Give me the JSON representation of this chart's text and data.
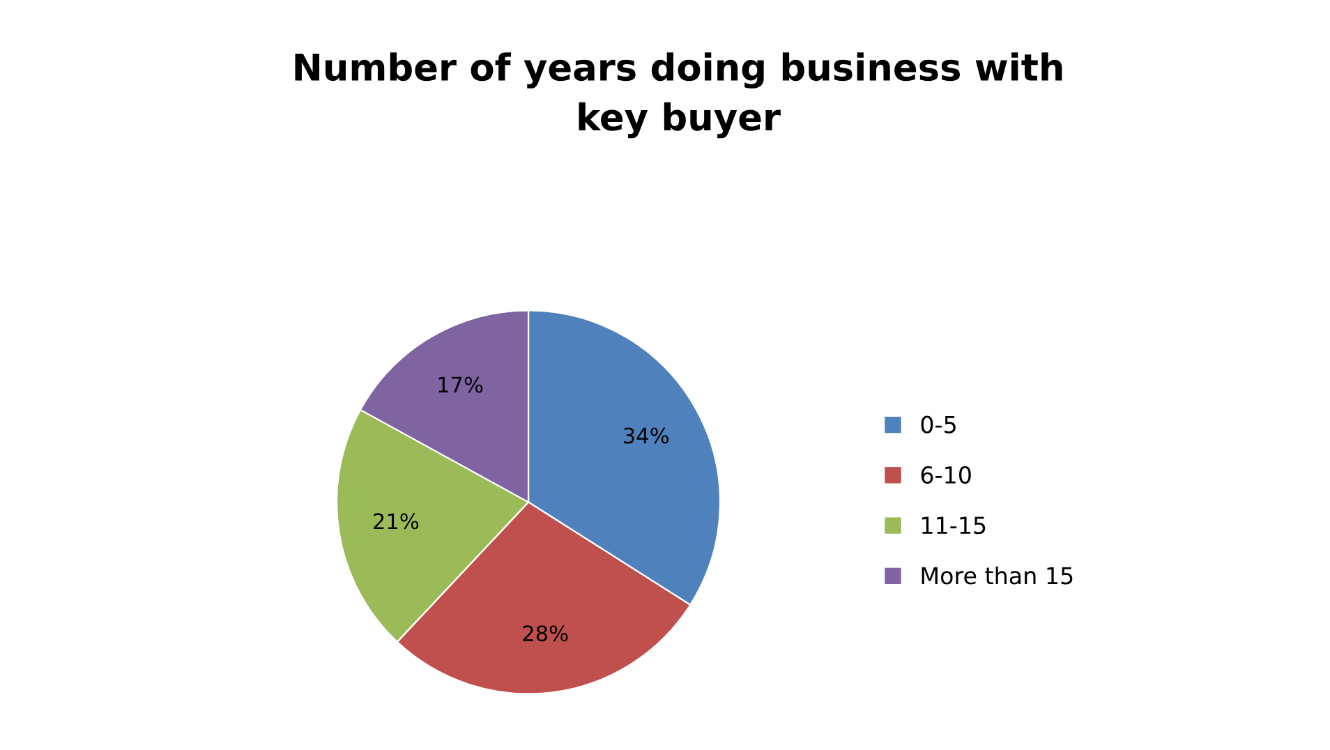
{
  "chart_data": {
    "type": "pie",
    "title": "Number of years doing business with\nkey buyer",
    "categories": [
      "0-5",
      "6-10",
      "11-15",
      "More than 15"
    ],
    "values": [
      34,
      28,
      21,
      17
    ],
    "value_labels": [
      "34%",
      "28%",
      "21%",
      "17%"
    ],
    "colors": [
      "#4f81bd",
      "#c0504d",
      "#9bbb59",
      "#8064a2"
    ],
    "legend": "right"
  }
}
